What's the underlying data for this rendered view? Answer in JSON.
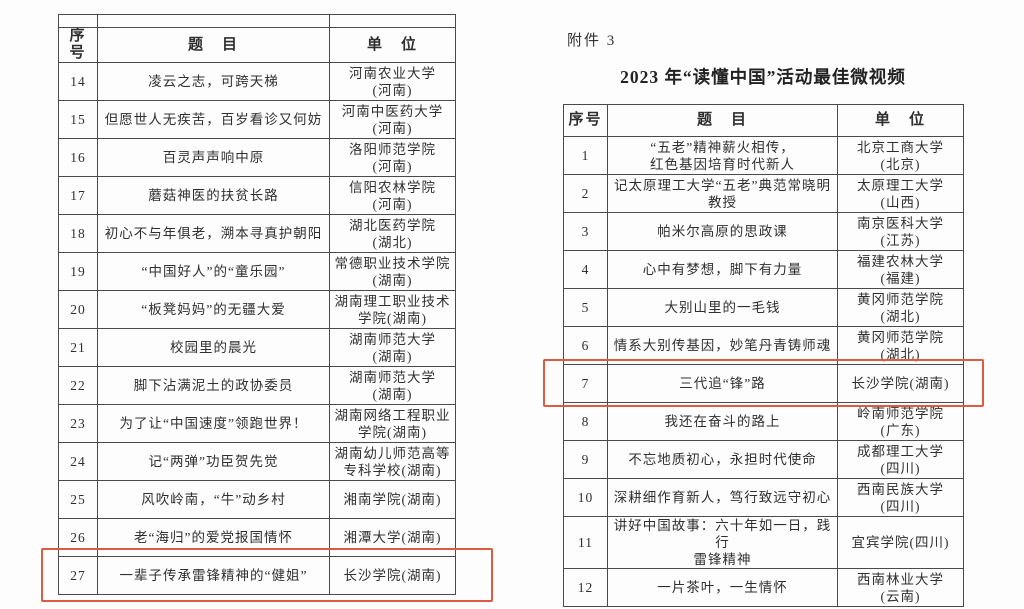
{
  "page": {
    "attachment_label": "附件 3",
    "right_title": "2023 年“读懂中国”活动最佳微视频",
    "highlight_color": "#dd5b41"
  },
  "left_table": {
    "headers": {
      "no": "序号",
      "title": "题　目",
      "unit": "单　位"
    },
    "highlighted_row_no": "27",
    "rows": [
      {
        "no": "14",
        "title": "凌云之志，可跨天梯",
        "unit": "河南农业大学\n(河南)"
      },
      {
        "no": "15",
        "title": "但愿世人无疾苦，百岁看诊又何妨",
        "unit": "河南中医药大学\n(河南)"
      },
      {
        "no": "16",
        "title": "百灵声声响中原",
        "unit": "洛阳师范学院\n(河南)"
      },
      {
        "no": "17",
        "title": "蘑菇神医的扶贫长路",
        "unit": "信阳农林学院\n(河南)"
      },
      {
        "no": "18",
        "title": "初心不与年俱老，溯本寻真护朝阳",
        "unit": "湖北医药学院\n(湖北)"
      },
      {
        "no": "19",
        "title": "“中国好人”的“童乐园”",
        "unit": "常德职业技术学院\n(湖南)"
      },
      {
        "no": "20",
        "title": "“板凳妈妈”的无疆大爱",
        "unit": "湖南理工职业技术\n学院(湖南)"
      },
      {
        "no": "21",
        "title": "校园里的晨光",
        "unit": "湖南师范大学\n(湖南)"
      },
      {
        "no": "22",
        "title": "脚下沾满泥土的政协委员",
        "unit": "湖南师范大学\n(湖南)"
      },
      {
        "no": "23",
        "title": "为了让“中国速度”领跑世界！",
        "unit": "湖南网络工程职业\n学院(湖南)"
      },
      {
        "no": "24",
        "title": "记“两弹”功臣贺先觉",
        "unit": "湖南幼儿师范高等\n专科学校(湖南)"
      },
      {
        "no": "25",
        "title": "风吹岭南，“牛”动乡村",
        "unit": "湘南学院(湖南)"
      },
      {
        "no": "26",
        "title": "老“海归”的爱党报国情怀",
        "unit": "湘潭大学(湖南)"
      },
      {
        "no": "27",
        "title": "一辈子传承雷锋精神的“健姐”",
        "unit": "长沙学院(湖南)",
        "highlighted": true
      }
    ]
  },
  "right_table": {
    "headers": {
      "no": "序号",
      "title": "题　目",
      "unit": "单　位"
    },
    "highlighted_row_no": "7",
    "rows": [
      {
        "no": "1",
        "title": "“五老”精神薪火相传，\n红色基因培育时代新人",
        "unit": "北京工商大学\n(北京)"
      },
      {
        "no": "2",
        "title": "记太原理工大学“五老”典范常晓明\n教授",
        "unit": "太原理工大学\n(山西)"
      },
      {
        "no": "3",
        "title": "帕米尔高原的思政课",
        "unit": "南京医科大学\n(江苏)"
      },
      {
        "no": "4",
        "title": "心中有梦想，脚下有力量",
        "unit": "福建农林大学\n(福建)"
      },
      {
        "no": "5",
        "title": "大别山里的一毛钱",
        "unit": "黄冈师范学院\n(湖北)"
      },
      {
        "no": "6",
        "title": "情系大别传基因，妙笔丹青铸师魂",
        "unit": "黄冈师范学院\n(湖北)"
      },
      {
        "no": "7",
        "title": "三代追“锋”路",
        "unit": "长沙学院(湖南)",
        "highlighted": true
      },
      {
        "no": "8",
        "title": "我还在奋斗的路上",
        "unit": "岭南师范学院\n(广东)"
      },
      {
        "no": "9",
        "title": "不忘地质初心，永担时代使命",
        "unit": "成都理工大学\n(四川)"
      },
      {
        "no": "10",
        "title": "深耕细作育新人，笃行致远守初心",
        "unit": "西南民族大学\n(四川)"
      },
      {
        "no": "11",
        "title": "讲好中国故事：六十年如一日，践行\n雷锋精神",
        "unit": "宜宾学院(四川)"
      },
      {
        "no": "12",
        "title": "一片茶叶，一生情怀",
        "unit": "西南林业大学\n(云南)"
      }
    ]
  }
}
